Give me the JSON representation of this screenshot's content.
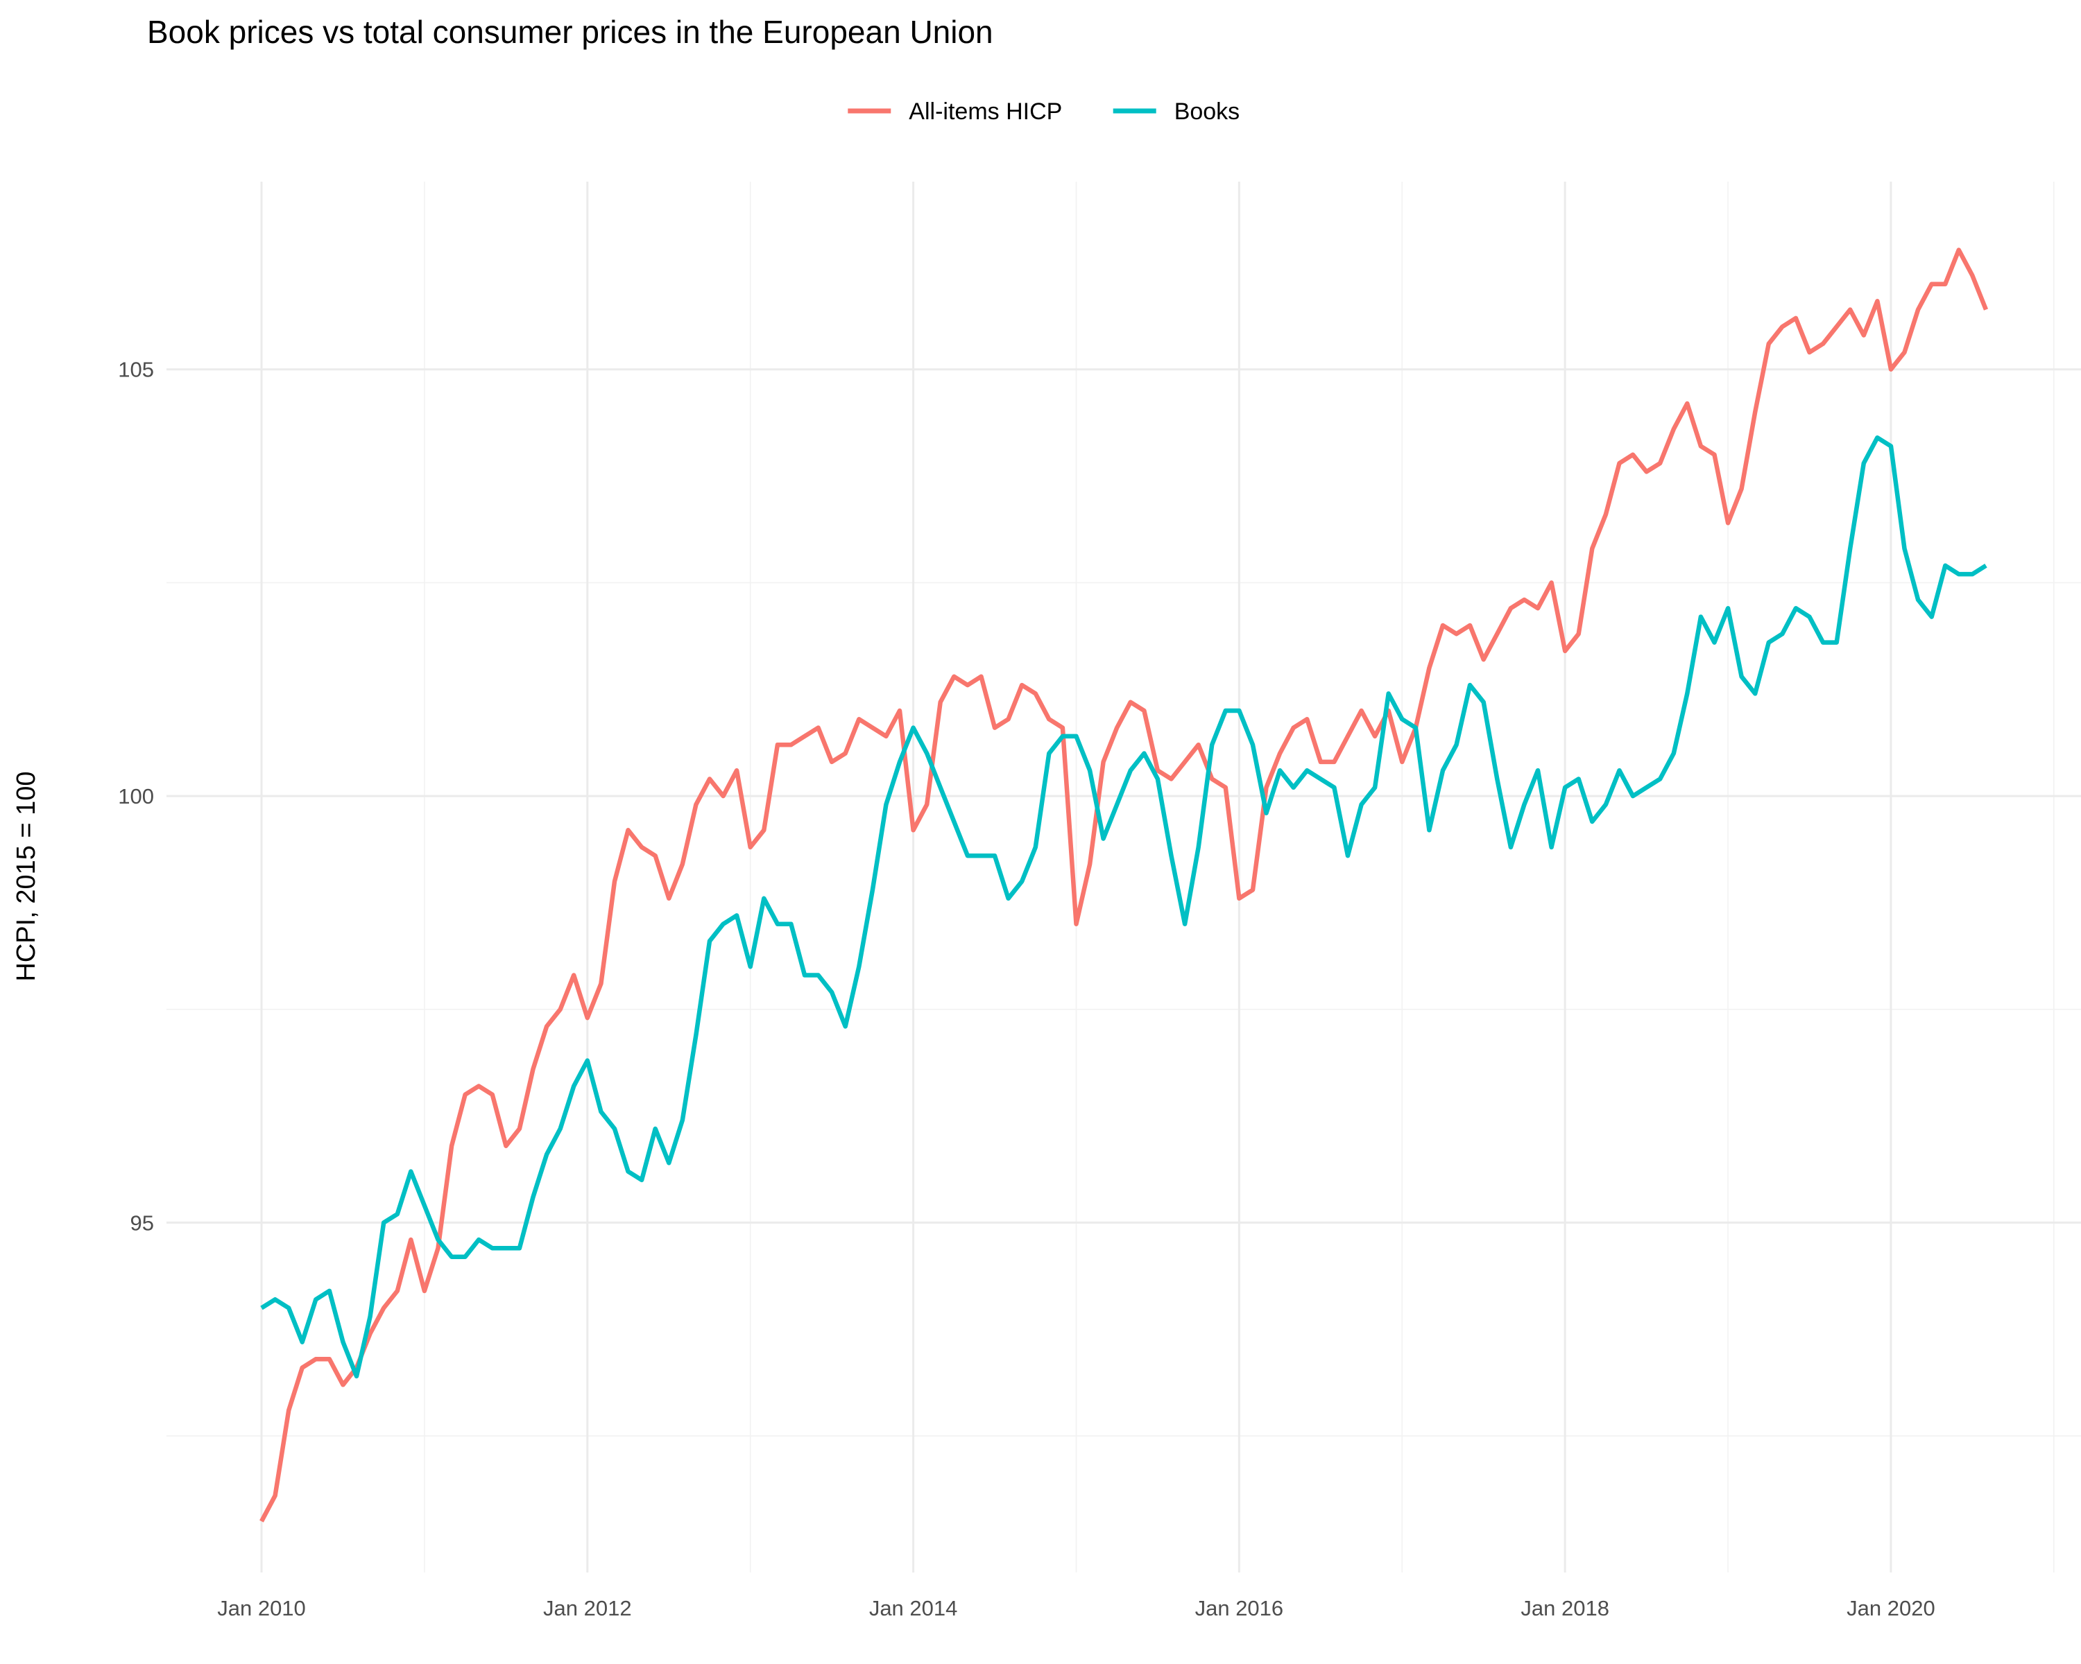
{
  "chart_data": {
    "type": "line",
    "title": "Book prices vs total consumer prices in the European Union",
    "xlabel": "",
    "ylabel": "HCPI, 2015 = 100",
    "x_start": "2010-01",
    "frequency": "monthly",
    "x_ticks": [
      {
        "label": "Jan 2010",
        "date": "2010-01"
      },
      {
        "label": "Jan 2012",
        "date": "2012-01"
      },
      {
        "label": "Jan 2014",
        "date": "2014-01"
      },
      {
        "label": "Jan 2016",
        "date": "2016-01"
      },
      {
        "label": "Jan 2018",
        "date": "2018-01"
      },
      {
        "label": "Jan 2020",
        "date": "2020-01"
      }
    ],
    "xlim": [
      "2009-06",
      "2021-03"
    ],
    "y_ticks": [
      {
        "label": "95",
        "value": 95
      },
      {
        "label": "100",
        "value": 100
      },
      {
        "label": "105",
        "value": 105
      }
    ],
    "ylim": [
      90.9,
      107.2
    ],
    "grid": true,
    "legend_position": "top",
    "series": [
      {
        "name": "All-items HICP",
        "color": "#F8766D",
        "values": [
          91.5,
          91.8,
          92.8,
          93.3,
          93.4,
          93.4,
          93.1,
          93.3,
          93.7,
          94.0,
          94.2,
          94.8,
          94.2,
          94.7,
          95.9,
          96.5,
          96.6,
          96.5,
          95.9,
          96.1,
          96.8,
          97.3,
          97.5,
          97.9,
          97.4,
          97.8,
          99.0,
          99.6,
          99.4,
          99.3,
          98.8,
          99.2,
          99.9,
          100.2,
          100.0,
          100.3,
          99.4,
          99.6,
          100.6,
          100.6,
          100.7,
          100.8,
          100.4,
          100.5,
          100.9,
          100.8,
          100.7,
          101.0,
          99.6,
          99.9,
          101.1,
          101.4,
          101.3,
          101.4,
          100.8,
          100.9,
          101.3,
          101.2,
          100.9,
          100.8,
          98.5,
          99.2,
          100.4,
          100.8,
          101.1,
          101.0,
          100.3,
          100.2,
          100.4,
          100.6,
          100.2,
          100.1,
          98.8,
          98.9,
          100.1,
          100.5,
          100.8,
          100.9,
          100.4,
          100.4,
          100.7,
          101.0,
          100.7,
          101.0,
          100.4,
          100.8,
          101.5,
          102.0,
          101.9,
          102.0,
          101.6,
          101.9,
          102.2,
          102.3,
          102.2,
          102.5,
          101.7,
          101.9,
          102.9,
          103.3,
          103.9,
          104.0,
          103.8,
          103.9,
          104.3,
          104.6,
          104.1,
          104.0,
          103.2,
          103.6,
          104.5,
          105.3,
          105.5,
          105.6,
          105.2,
          105.3,
          105.5,
          105.7,
          105.4,
          105.8,
          105.0,
          105.2,
          105.7,
          106.0,
          106.0,
          106.4,
          106.1,
          105.7
        ]
      },
      {
        "name": "Books",
        "color": "#00BFC4",
        "values": [
          94.0,
          94.1,
          94.0,
          93.6,
          94.1,
          94.2,
          93.6,
          93.2,
          93.9,
          95.0,
          95.1,
          95.6,
          95.2,
          94.8,
          94.6,
          94.6,
          94.8,
          94.7,
          94.7,
          94.7,
          95.3,
          95.8,
          96.1,
          96.6,
          96.9,
          96.3,
          96.1,
          95.6,
          95.5,
          96.1,
          95.7,
          96.2,
          97.2,
          98.3,
          98.5,
          98.6,
          98.0,
          98.8,
          98.5,
          98.5,
          97.9,
          97.9,
          97.7,
          97.3,
          98.0,
          98.9,
          99.9,
          100.4,
          100.8,
          100.5,
          100.1,
          99.7,
          99.3,
          99.3,
          99.3,
          98.8,
          99.0,
          99.4,
          100.5,
          100.7,
          100.7,
          100.3,
          99.5,
          99.9,
          100.3,
          100.5,
          100.2,
          99.3,
          98.5,
          99.4,
          100.6,
          101.0,
          101.0,
          100.6,
          99.8,
          100.3,
          100.1,
          100.3,
          100.2,
          100.1,
          99.3,
          99.9,
          100.1,
          101.2,
          100.9,
          100.8,
          99.6,
          100.3,
          100.6,
          101.3,
          101.1,
          100.2,
          99.4,
          99.9,
          100.3,
          99.4,
          100.1,
          100.2,
          99.7,
          99.9,
          100.3,
          100.0,
          100.1,
          100.2,
          100.5,
          101.2,
          102.1,
          101.8,
          102.2,
          101.4,
          101.2,
          101.8,
          101.9,
          102.2,
          102.1,
          101.8,
          101.8,
          102.9,
          103.9,
          104.2,
          104.1,
          102.9,
          102.3,
          102.1,
          102.7,
          102.6,
          102.6,
          102.7
        ]
      }
    ]
  }
}
